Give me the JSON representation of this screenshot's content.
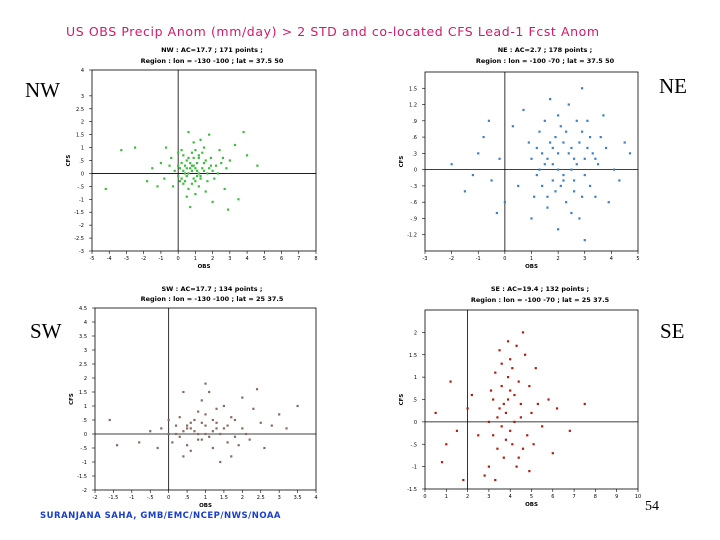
{
  "title": "US OBS Precip Anom (mm/day) > 2 STD and co-located CFS Lead-1 Fcst Anom",
  "footer": "SURANJANA SAHA, GMB/EMC/NCEP/NWS/NOAA",
  "page_number": "54",
  "colors": {
    "title": "#d21a6a",
    "footer": "#1a3ecc",
    "nw": "#3dbb3d",
    "ne": "#3a7fd0",
    "sw": "#8a6a60",
    "se": "#b01c10"
  },
  "panels": {
    "nw": {
      "label": "NW"
    },
    "ne": {
      "label": "NE"
    },
    "sw": {
      "label": "SW"
    },
    "se": {
      "label": "SE"
    }
  },
  "chart_data": [
    {
      "id": "nw",
      "type": "scatter",
      "title": "NW : AC=17.7 ; 171 points ;",
      "subtitle": "Region : lon = -130 -100 ; lat = 37.5 50",
      "xlabel": "OBS",
      "ylabel": "CFS",
      "xlim": [
        -5,
        8
      ],
      "ylim": [
        -3,
        4
      ],
      "xticks": [
        -5,
        -4,
        -3,
        -2,
        -1,
        0,
        1,
        2,
        3,
        4,
        5,
        6,
        7,
        8
      ],
      "yticks": [
        -3,
        -2.5,
        -2,
        -1.5,
        -1,
        -0.5,
        0,
        0.5,
        1,
        1.5,
        2,
        2.5,
        3,
        4
      ],
      "points": [
        [
          1.0,
          0.2
        ],
        [
          0.8,
          0.3
        ],
        [
          1.2,
          0.0
        ],
        [
          0.5,
          -0.1
        ],
        [
          1.5,
          0.4
        ],
        [
          0.3,
          0.1
        ],
        [
          0.9,
          -0.2
        ],
        [
          1.8,
          0.2
        ],
        [
          0.6,
          0.0
        ],
        [
          1.1,
          0.1
        ],
        [
          0.4,
          0.3
        ],
        [
          1.3,
          -0.1
        ],
        [
          0.7,
          0.2
        ],
        [
          2.0,
          0.1
        ],
        [
          0.2,
          -0.2
        ],
        [
          1.6,
          0.5
        ],
        [
          0.9,
          0.6
        ],
        [
          0.5,
          0.5
        ],
        [
          1.4,
          0.8
        ],
        [
          2.2,
          0.3
        ],
        [
          0.1,
          0.2
        ],
        [
          1.7,
          -0.3
        ],
        [
          0.8,
          -0.4
        ],
        [
          2.5,
          0.4
        ],
        [
          1.0,
          0.9
        ],
        [
          0.3,
          0.7
        ],
        [
          1.9,
          0.6
        ],
        [
          2.8,
          0.2
        ],
        [
          -0.2,
          0.1
        ],
        [
          -0.5,
          0.3
        ],
        [
          0.0,
          -0.1
        ],
        [
          1.2,
          -0.5
        ],
        [
          0.6,
          -0.6
        ],
        [
          2.1,
          -0.2
        ],
        [
          1.5,
          1.0
        ],
        [
          0.9,
          1.2
        ],
        [
          2.4,
          0.9
        ],
        [
          3.0,
          0.5
        ],
        [
          0.4,
          -0.3
        ],
        [
          1.1,
          0.4
        ],
        [
          -1.0,
          0.4
        ],
        [
          -1.5,
          0.2
        ],
        [
          -0.8,
          -0.2
        ],
        [
          0.2,
          0.9
        ],
        [
          1.3,
          1.3
        ],
        [
          3.3,
          1.1
        ],
        [
          -2.5,
          1.0
        ],
        [
          0.0,
          0.8
        ],
        [
          1.0,
          -0.8
        ],
        [
          0.5,
          -0.9
        ],
        [
          2.0,
          -1.1
        ],
        [
          0.7,
          -1.3
        ],
        [
          3.5,
          -1.0
        ],
        [
          1.8,
          1.5
        ],
        [
          0.6,
          1.6
        ],
        [
          -0.7,
          1.0
        ],
        [
          2.7,
          -0.6
        ],
        [
          1.6,
          -0.7
        ],
        [
          4.0,
          0.7
        ],
        [
          -0.3,
          -0.5
        ],
        [
          1.2,
          0.6
        ],
        [
          0.4,
          0.0
        ],
        [
          0.8,
          0.1
        ],
        [
          1.4,
          0.2
        ],
        [
          1.0,
          -0.3
        ],
        [
          0.2,
          0.4
        ],
        [
          1.7,
          0.0
        ],
        [
          0.9,
          0.3
        ],
        [
          0.5,
          0.2
        ],
        [
          1.1,
          -0.1
        ],
        [
          2.3,
          0.0
        ],
        [
          0.0,
          0.3
        ],
        [
          1.5,
          0.1
        ],
        [
          0.7,
          0.4
        ],
        [
          0.3,
          -0.4
        ],
        [
          1.9,
          0.3
        ],
        [
          1.2,
          0.7
        ],
        [
          0.6,
          0.6
        ],
        [
          2.6,
          0.6
        ],
        [
          0.1,
          -0.3
        ],
        [
          -1.2,
          -0.5
        ],
        [
          -0.4,
          0.6
        ],
        [
          1.3,
          -0.2
        ],
        [
          0.8,
          0.8
        ],
        [
          4.6,
          0.3
        ],
        [
          -3.3,
          0.9
        ],
        [
          -4.2,
          -0.6
        ],
        [
          -1.8,
          -0.3
        ],
        [
          3.8,
          1.6
        ],
        [
          2.9,
          -1.4
        ]
      ]
    },
    {
      "id": "ne",
      "type": "scatter",
      "title": "NE : AC=2.7 ; 178 points ;",
      "subtitle": "Region : lon = -100 -70 ; lat = 37.5 50",
      "xlabel": "OBS",
      "ylabel": "CFS",
      "xlim": [
        -3,
        5
      ],
      "ylim": [
        -1.5,
        1.8
      ],
      "xticks": [
        -3,
        -2,
        -1,
        0,
        1,
        2,
        3,
        4,
        5
      ],
      "yticks": [
        -1.2,
        -0.9,
        -0.6,
        -0.3,
        0,
        0.3,
        0.6,
        0.9,
        1.2,
        1.5
      ],
      "points": [
        [
          1.5,
          0.1
        ],
        [
          2.0,
          0.3
        ],
        [
          2.5,
          0.0
        ],
        [
          1.8,
          -0.2
        ],
        [
          3.0,
          0.2
        ],
        [
          1.2,
          0.4
        ],
        [
          2.2,
          -0.1
        ],
        [
          2.8,
          0.5
        ],
        [
          1.6,
          0.2
        ],
        [
          3.2,
          -0.3
        ],
        [
          2.4,
          0.3
        ],
        [
          1.9,
          0.6
        ],
        [
          2.6,
          -0.4
        ],
        [
          3.5,
          0.1
        ],
        [
          1.4,
          -0.3
        ],
        [
          2.1,
          0.8
        ],
        [
          2.9,
          0.7
        ],
        [
          1.7,
          0.5
        ],
        [
          3.8,
          0.4
        ],
        [
          2.3,
          -0.6
        ],
        [
          1.3,
          0.7
        ],
        [
          3.4,
          -0.5
        ],
        [
          2.7,
          0.9
        ],
        [
          4.1,
          0.0
        ],
        [
          1.1,
          -0.5
        ],
        [
          2.0,
          1.0
        ],
        [
          3.1,
          0.9
        ],
        [
          1.0,
          0.2
        ],
        [
          2.5,
          -0.8
        ],
        [
          3.6,
          0.6
        ],
        [
          1.6,
          -0.7
        ],
        [
          2.8,
          -0.9
        ],
        [
          0.9,
          0.5
        ],
        [
          4.3,
          -0.2
        ],
        [
          2.2,
          0.5
        ],
        [
          3.3,
          0.3
        ],
        [
          1.8,
          0.1
        ],
        [
          2.6,
          0.2
        ],
        [
          2.1,
          -0.3
        ],
        [
          3.0,
          -0.1
        ],
        [
          1.5,
          0.9
        ],
        [
          2.4,
          1.2
        ],
        [
          3.7,
          1.0
        ],
        [
          1.2,
          -0.1
        ],
        [
          4.5,
          0.5
        ],
        [
          -1.0,
          0.3
        ],
        [
          -0.5,
          -0.2
        ],
        [
          -0.8,
          0.6
        ],
        [
          -1.5,
          -0.4
        ],
        [
          -0.2,
          0.2
        ],
        [
          0.5,
          -0.3
        ],
        [
          0.3,
          0.8
        ],
        [
          -2.0,
          0.1
        ],
        [
          0.0,
          -0.6
        ],
        [
          1.0,
          -0.9
        ],
        [
          2.0,
          -1.1
        ],
        [
          3.0,
          -1.3
        ],
        [
          1.7,
          1.3
        ],
        [
          2.9,
          1.5
        ],
        [
          -1.2,
          -0.1
        ],
        [
          2.5,
          0.4
        ],
        [
          1.9,
          -0.4
        ],
        [
          3.2,
          0.6
        ],
        [
          2.0,
          0.0
        ],
        [
          1.4,
          0.3
        ],
        [
          2.7,
          0.1
        ],
        [
          3.4,
          0.2
        ],
        [
          1.6,
          -0.5
        ],
        [
          2.3,
          0.7
        ],
        [
          3.9,
          -0.6
        ],
        [
          2.2,
          -0.2
        ],
        [
          1.8,
          0.4
        ],
        [
          3.1,
          0.4
        ],
        [
          2.6,
          -0.2
        ],
        [
          1.3,
          0.0
        ],
        [
          2.9,
          -0.5
        ],
        [
          4.7,
          0.3
        ],
        [
          -0.6,
          0.9
        ],
        [
          0.7,
          1.1
        ],
        [
          -0.3,
          -0.8
        ]
      ]
    },
    {
      "id": "sw",
      "type": "scatter",
      "title": "SW : AC=17.7 ; 134 points ;",
      "subtitle": "Region : lon = -130 -100 ; lat = 25 37.5",
      "xlabel": "OBS",
      "ylabel": "CFS",
      "xlim": [
        -2,
        4
      ],
      "ylim": [
        -2,
        4.5
      ],
      "xticks": [
        -2,
        -1.5,
        -1,
        -0.5,
        0,
        0.5,
        1,
        1.5,
        2,
        2.5,
        3,
        3.5,
        4
      ],
      "yticks": [
        -2,
        -1.5,
        -1,
        -0.5,
        0,
        0.5,
        1,
        1.5,
        2,
        2.5,
        3,
        3.5,
        4,
        4.5
      ],
      "points": [
        [
          0.5,
          0.2
        ],
        [
          0.8,
          0.0
        ],
        [
          1.0,
          0.3
        ],
        [
          0.3,
          -0.1
        ],
        [
          1.2,
          0.1
        ],
        [
          0.6,
          0.4
        ],
        [
          0.9,
          -0.2
        ],
        [
          1.5,
          0.2
        ],
        [
          0.4,
          0.1
        ],
        [
          1.1,
          -0.1
        ],
        [
          0.7,
          0.5
        ],
        [
          1.3,
          0.4
        ],
        [
          0.2,
          0.3
        ],
        [
          1.6,
          -0.3
        ],
        [
          0.0,
          0.0
        ],
        [
          1.8,
          0.5
        ],
        [
          0.5,
          -0.4
        ],
        [
          1.0,
          0.7
        ],
        [
          1.4,
          0.0
        ],
        [
          2.0,
          0.2
        ],
        [
          0.1,
          -0.3
        ],
        [
          0.8,
          0.8
        ],
        [
          1.7,
          0.6
        ],
        [
          2.2,
          -0.2
        ],
        [
          -0.2,
          0.2
        ],
        [
          1.2,
          -0.5
        ],
        [
          0.6,
          -0.6
        ],
        [
          2.5,
          0.4
        ],
        [
          1.9,
          -0.4
        ],
        [
          0.3,
          0.6
        ],
        [
          -0.5,
          0.1
        ],
        [
          2.8,
          0.3
        ],
        [
          1.5,
          1.0
        ],
        [
          0.9,
          1.2
        ],
        [
          2.3,
          0.9
        ],
        [
          0.4,
          -0.8
        ],
        [
          1.1,
          1.5
        ],
        [
          -1.6,
          0.5
        ],
        [
          -0.8,
          -0.3
        ],
        [
          3.2,
          0.2
        ],
        [
          1.4,
          -1.0
        ],
        [
          2.0,
          1.3
        ],
        [
          0.7,
          0.1
        ],
        [
          1.0,
          0.0
        ],
        [
          0.5,
          0.3
        ],
        [
          1.3,
          0.2
        ],
        [
          0.8,
          -0.2
        ],
        [
          1.6,
          0.3
        ],
        [
          0.2,
          0.0
        ],
        [
          1.2,
          0.5
        ],
        [
          2.1,
          0.0
        ],
        [
          0.6,
          0.2
        ],
        [
          1.8,
          -0.1
        ],
        [
          0.9,
          0.4
        ],
        [
          2.6,
          -0.5
        ],
        [
          -0.3,
          -0.5
        ],
        [
          3.5,
          1.0
        ],
        [
          1.0,
          1.8
        ],
        [
          0.4,
          1.5
        ],
        [
          2.4,
          1.6
        ],
        [
          -1.4,
          -0.4
        ],
        [
          1.7,
          -0.8
        ],
        [
          0.0,
          0.5
        ],
        [
          3.0,
          0.7
        ],
        [
          1.3,
          0.9
        ]
      ]
    },
    {
      "id": "se",
      "type": "scatter",
      "title": "SE : AC=19.4 ; 132 points ;",
      "subtitle": "Region : lon = -100 -70 ; lat = 25 37.5",
      "xlabel": "OBS",
      "ylabel": "CFS",
      "xlim": [
        0,
        10
      ],
      "ylim": [
        -1.5,
        2.5
      ],
      "xticks": [
        0,
        1,
        2,
        3,
        4,
        5,
        6,
        7,
        8,
        9,
        10
      ],
      "yticks": [
        -1.5,
        -1,
        -0.5,
        0,
        0.5,
        1,
        1.5,
        2
      ],
      "points": [
        [
          3.0,
          0.0
        ],
        [
          3.5,
          0.3
        ],
        [
          4.0,
          -0.2
        ],
        [
          3.2,
          0.5
        ],
        [
          4.5,
          0.1
        ],
        [
          3.8,
          -0.4
        ],
        [
          4.2,
          0.6
        ],
        [
          3.6,
          0.8
        ],
        [
          5.0,
          0.2
        ],
        [
          3.4,
          -0.6
        ],
        [
          4.8,
          -0.3
        ],
        [
          3.9,
          1.0
        ],
        [
          4.4,
          0.9
        ],
        [
          3.1,
          0.7
        ],
        [
          5.3,
          0.4
        ],
        [
          3.7,
          -0.8
        ],
        [
          4.1,
          1.2
        ],
        [
          4.6,
          -0.6
        ],
        [
          3.3,
          1.1
        ],
        [
          5.5,
          -0.1
        ],
        [
          3.0,
          -1.0
        ],
        [
          4.0,
          1.4
        ],
        [
          4.9,
          0.8
        ],
        [
          3.6,
          1.3
        ],
        [
          4.3,
          -1.0
        ],
        [
          3.2,
          -0.3
        ],
        [
          5.8,
          0.5
        ],
        [
          3.5,
          1.6
        ],
        [
          4.7,
          1.5
        ],
        [
          3.8,
          0.2
        ],
        [
          4.2,
          0.0
        ],
        [
          3.6,
          -0.1
        ],
        [
          4.5,
          0.4
        ],
        [
          3.9,
          0.5
        ],
        [
          4.1,
          -0.5
        ],
        [
          3.4,
          0.1
        ],
        [
          5.1,
          -0.5
        ],
        [
          4.4,
          -0.8
        ],
        [
          3.7,
          0.4
        ],
        [
          4.0,
          0.7
        ],
        [
          6.2,
          0.3
        ],
        [
          6.8,
          -0.2
        ],
        [
          2.5,
          -0.3
        ],
        [
          2.2,
          0.6
        ],
        [
          1.0,
          -0.5
        ],
        [
          1.5,
          -0.2
        ],
        [
          0.5,
          0.2
        ],
        [
          0.8,
          -0.9
        ],
        [
          1.2,
          0.9
        ],
        [
          2.8,
          -1.2
        ],
        [
          4.6,
          2.0
        ],
        [
          3.9,
          1.8
        ],
        [
          5.2,
          1.2
        ],
        [
          4.3,
          1.7
        ],
        [
          6.0,
          -0.7
        ],
        [
          3.3,
          -1.3
        ],
        [
          4.9,
          -1.1
        ],
        [
          7.5,
          0.4
        ],
        [
          1.8,
          -1.3
        ],
        [
          2.0,
          0.3
        ]
      ]
    }
  ]
}
